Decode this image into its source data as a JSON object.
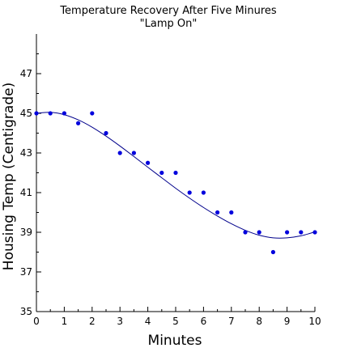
{
  "chart_data": {
    "type": "scatter",
    "title": "Temperature Recovery After Five Minures",
    "subtitle": "\"Lamp On\"",
    "xlabel": "Minutes",
    "ylabel": "Housing Temp (Centigrade)",
    "xlim": [
      0,
      10
    ],
    "ylim": [
      35,
      49
    ],
    "x_ticks": [
      0,
      1,
      2,
      3,
      4,
      5,
      6,
      7,
      8,
      9,
      10
    ],
    "y_ticks": [
      35,
      37,
      39,
      41,
      43,
      45,
      47
    ],
    "grid": false,
    "series": [
      {
        "x": [
          0,
          0.5,
          1,
          1.5,
          2,
          2.5,
          3,
          3.5,
          4,
          4.5,
          5,
          5.5,
          6,
          6.5,
          7,
          7.5,
          8,
          8.5,
          9,
          9.5,
          10
        ],
        "y": [
          45,
          45,
          45,
          44.5,
          45,
          44,
          43,
          43,
          42.5,
          42,
          42,
          41,
          41,
          40,
          40,
          39,
          39,
          38,
          39,
          39,
          39
        ]
      }
    ],
    "fit_curve": {
      "x": [
        0,
        0.5,
        1,
        1.5,
        2,
        2.5,
        3,
        3.5,
        4,
        4.5,
        5,
        5.5,
        6,
        6.5,
        7,
        7.5,
        8,
        8.5,
        9,
        9.5,
        10
      ],
      "y": [
        45.0,
        45.05,
        44.93,
        44.67,
        44.3,
        43.85,
        43.35,
        42.82,
        42.28,
        41.75,
        41.22,
        40.72,
        40.25,
        39.82,
        39.43,
        39.1,
        38.85,
        38.72,
        38.72,
        38.82,
        39.02
      ]
    },
    "colors": {
      "points": "#0000dd",
      "curve": "#00008b",
      "axis": "#000000"
    }
  }
}
